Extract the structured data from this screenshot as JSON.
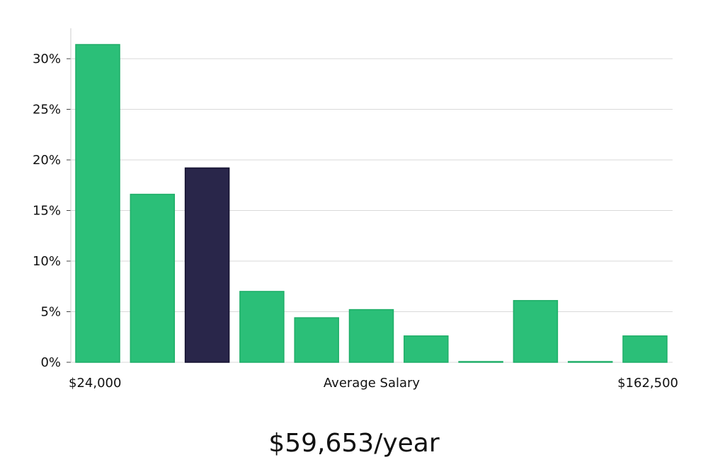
{
  "chart_data": {
    "type": "bar",
    "title": "",
    "xlabel": "Average Salary",
    "ylabel": "",
    "ylim": [
      0,
      33
    ],
    "yticks": [
      0,
      5,
      10,
      15,
      20,
      25,
      30
    ],
    "ytick_suffix": "%",
    "x_start_label": "$24,000",
    "x_end_label": "$162,500",
    "grid": true,
    "colors": {
      "bar": "#2bbf78",
      "bar_edge": "#1fae68",
      "highlight": "#29264a",
      "highlight_edge": "#141230",
      "grid": "#d9d9d9",
      "axis": "#cccccc"
    },
    "values": [
      31.4,
      16.6,
      19.2,
      7.0,
      4.4,
      5.2,
      2.6,
      0.05,
      6.1,
      0.05,
      2.6
    ],
    "highlight_index": 2
  },
  "salary_summary": "$59,653/year"
}
